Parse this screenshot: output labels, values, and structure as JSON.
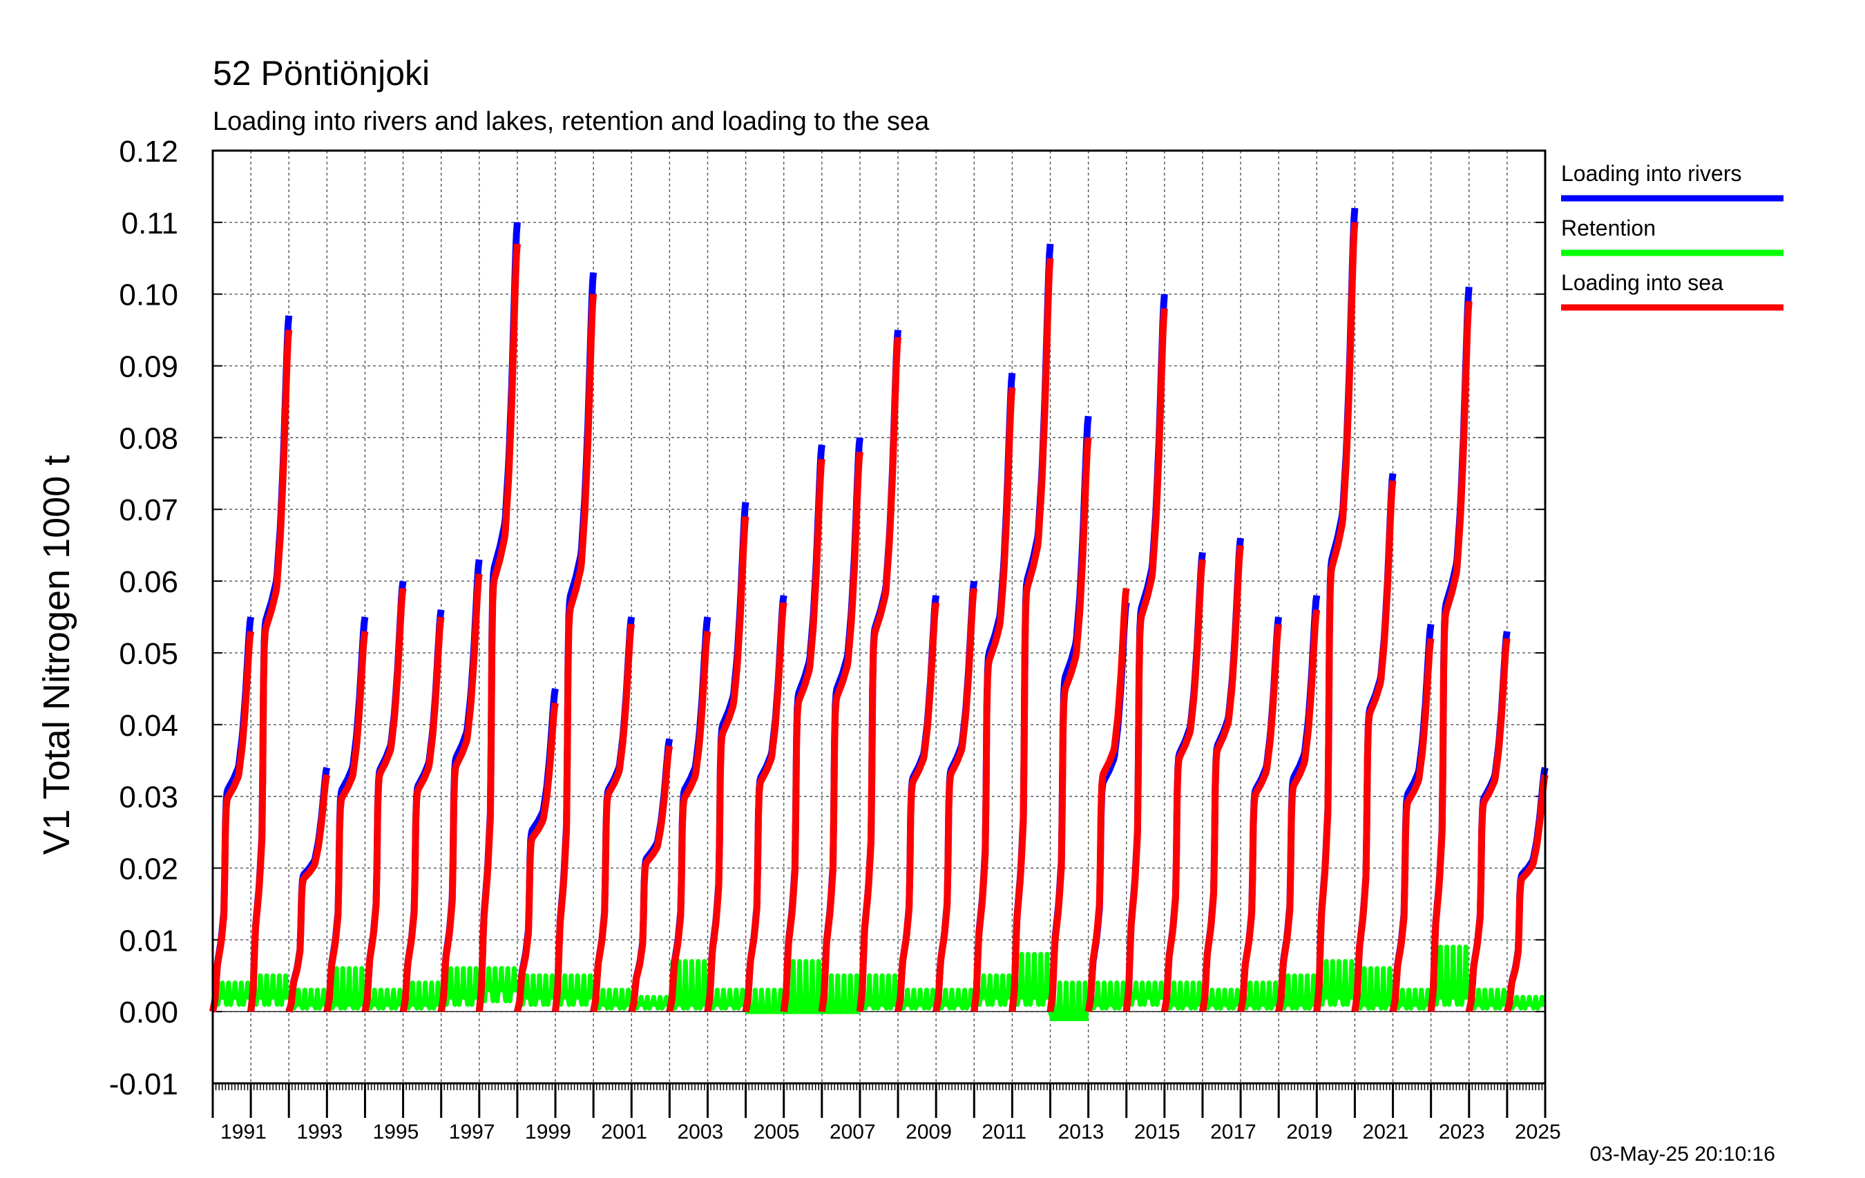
{
  "chart_data": {
    "type": "line",
    "title": "52 Pöntiönjoki",
    "subtitle": "Loading into rivers and lakes, retention and loading to the sea",
    "ylabel": "V1 Total Nitrogen 1000 t",
    "xlabel": "",
    "xlim": [
      1990,
      2025
    ],
    "ylim": [
      -0.01,
      0.12
    ],
    "yticks": [
      -0.01,
      0.0,
      0.01,
      0.02,
      0.03,
      0.04,
      0.05,
      0.06,
      0.07,
      0.08,
      0.09,
      0.1,
      0.11,
      0.12
    ],
    "ytick_labels": [
      "-0.01",
      "0.00",
      "0.01",
      "0.02",
      "0.03",
      "0.04",
      "0.05",
      "0.06",
      "0.07",
      "0.08",
      "0.09",
      "0.10",
      "0.11",
      "0.12"
    ],
    "xticks": [
      1991,
      1993,
      1995,
      1997,
      1999,
      2001,
      2003,
      2005,
      2007,
      2009,
      2011,
      2013,
      2015,
      2017,
      2019,
      2021,
      2023,
      2025
    ],
    "grid": true,
    "legend_position": "right",
    "timestamp": "03-May-25 20:10:16",
    "series": [
      {
        "name": "Loading into rivers",
        "color": "#0000ff"
      },
      {
        "name": "Retention",
        "color": "#00ff00"
      },
      {
        "name": "Loading into sea",
        "color": "#ff0000"
      }
    ],
    "annual": [
      {
        "year": 1990,
        "rivers_total": 0.055,
        "sea_total": 0.053,
        "retention_avg": 0.002,
        "retention_peak": 0.004
      },
      {
        "year": 1991,
        "rivers_total": 0.097,
        "sea_total": 0.095,
        "retention_avg": 0.002,
        "retention_peak": 0.005
      },
      {
        "year": 1992,
        "rivers_total": 0.034,
        "sea_total": 0.033,
        "retention_avg": 0.001,
        "retention_peak": 0.003
      },
      {
        "year": 1993,
        "rivers_total": 0.055,
        "sea_total": 0.053,
        "retention_avg": 0.001,
        "retention_peak": 0.006
      },
      {
        "year": 1994,
        "rivers_total": 0.06,
        "sea_total": 0.059,
        "retention_avg": 0.001,
        "retention_peak": 0.003
      },
      {
        "year": 1995,
        "rivers_total": 0.056,
        "sea_total": 0.055,
        "retention_avg": 0.001,
        "retention_peak": 0.004
      },
      {
        "year": 1996,
        "rivers_total": 0.063,
        "sea_total": 0.061,
        "retention_avg": 0.002,
        "retention_peak": 0.006
      },
      {
        "year": 1997,
        "rivers_total": 0.11,
        "sea_total": 0.107,
        "retention_avg": 0.003,
        "retention_peak": 0.006
      },
      {
        "year": 1998,
        "rivers_total": 0.045,
        "sea_total": 0.043,
        "retention_avg": 0.002,
        "retention_peak": 0.005
      },
      {
        "year": 1999,
        "rivers_total": 0.103,
        "sea_total": 0.1,
        "retention_avg": 0.002,
        "retention_peak": 0.005
      },
      {
        "year": 2000,
        "rivers_total": 0.055,
        "sea_total": 0.054,
        "retention_avg": 0.001,
        "retention_peak": 0.003
      },
      {
        "year": 2001,
        "rivers_total": 0.038,
        "sea_total": 0.037,
        "retention_avg": 0.001,
        "retention_peak": 0.002
      },
      {
        "year": 2002,
        "rivers_total": 0.055,
        "sea_total": 0.053,
        "retention_avg": 0.001,
        "retention_peak": 0.007
      },
      {
        "year": 2003,
        "rivers_total": 0.071,
        "sea_total": 0.069,
        "retention_avg": 0.001,
        "retention_peak": 0.003
      },
      {
        "year": 2004,
        "rivers_total": 0.058,
        "sea_total": 0.057,
        "retention_avg": 0.0,
        "retention_peak": 0.003
      },
      {
        "year": 2005,
        "rivers_total": 0.079,
        "sea_total": 0.077,
        "retention_avg": 0.0,
        "retention_peak": 0.007
      },
      {
        "year": 2006,
        "rivers_total": 0.08,
        "sea_total": 0.078,
        "retention_avg": 0.0,
        "retention_peak": 0.005
      },
      {
        "year": 2007,
        "rivers_total": 0.095,
        "sea_total": 0.094,
        "retention_avg": 0.001,
        "retention_peak": 0.005
      },
      {
        "year": 2008,
        "rivers_total": 0.058,
        "sea_total": 0.057,
        "retention_avg": 0.001,
        "retention_peak": 0.003
      },
      {
        "year": 2009,
        "rivers_total": 0.06,
        "sea_total": 0.059,
        "retention_avg": 0.001,
        "retention_peak": 0.003
      },
      {
        "year": 2010,
        "rivers_total": 0.089,
        "sea_total": 0.087,
        "retention_avg": 0.002,
        "retention_peak": 0.005
      },
      {
        "year": 2011,
        "rivers_total": 0.107,
        "sea_total": 0.105,
        "retention_avg": 0.002,
        "retention_peak": 0.008
      },
      {
        "year": 2012,
        "rivers_total": 0.083,
        "sea_total": 0.08,
        "retention_avg": -0.001,
        "retention_peak": 0.004
      },
      {
        "year": 2013,
        "rivers_total": 0.057,
        "sea_total": 0.059,
        "retention_avg": 0.001,
        "retention_peak": 0.004
      },
      {
        "year": 2014,
        "rivers_total": 0.1,
        "sea_total": 0.098,
        "retention_avg": 0.002,
        "retention_peak": 0.004
      },
      {
        "year": 2015,
        "rivers_total": 0.064,
        "sea_total": 0.063,
        "retention_avg": 0.001,
        "retention_peak": 0.004
      },
      {
        "year": 2016,
        "rivers_total": 0.066,
        "sea_total": 0.065,
        "retention_avg": 0.001,
        "retention_peak": 0.003
      },
      {
        "year": 2017,
        "rivers_total": 0.055,
        "sea_total": 0.054,
        "retention_avg": 0.001,
        "retention_peak": 0.004
      },
      {
        "year": 2018,
        "rivers_total": 0.058,
        "sea_total": 0.056,
        "retention_avg": 0.001,
        "retention_peak": 0.005
      },
      {
        "year": 2019,
        "rivers_total": 0.112,
        "sea_total": 0.11,
        "retention_avg": 0.002,
        "retention_peak": 0.007
      },
      {
        "year": 2020,
        "rivers_total": 0.075,
        "sea_total": 0.074,
        "retention_avg": 0.001,
        "retention_peak": 0.006
      },
      {
        "year": 2021,
        "rivers_total": 0.054,
        "sea_total": 0.052,
        "retention_avg": 0.001,
        "retention_peak": 0.003
      },
      {
        "year": 2022,
        "rivers_total": 0.101,
        "sea_total": 0.099,
        "retention_avg": 0.002,
        "retention_peak": 0.009
      },
      {
        "year": 2023,
        "rivers_total": 0.053,
        "sea_total": 0.052,
        "retention_avg": 0.001,
        "retention_peak": 0.003
      },
      {
        "year": 2024,
        "rivers_total": 0.034,
        "sea_total": 0.033,
        "retention_avg": 0.001,
        "retention_peak": 0.002
      }
    ]
  }
}
